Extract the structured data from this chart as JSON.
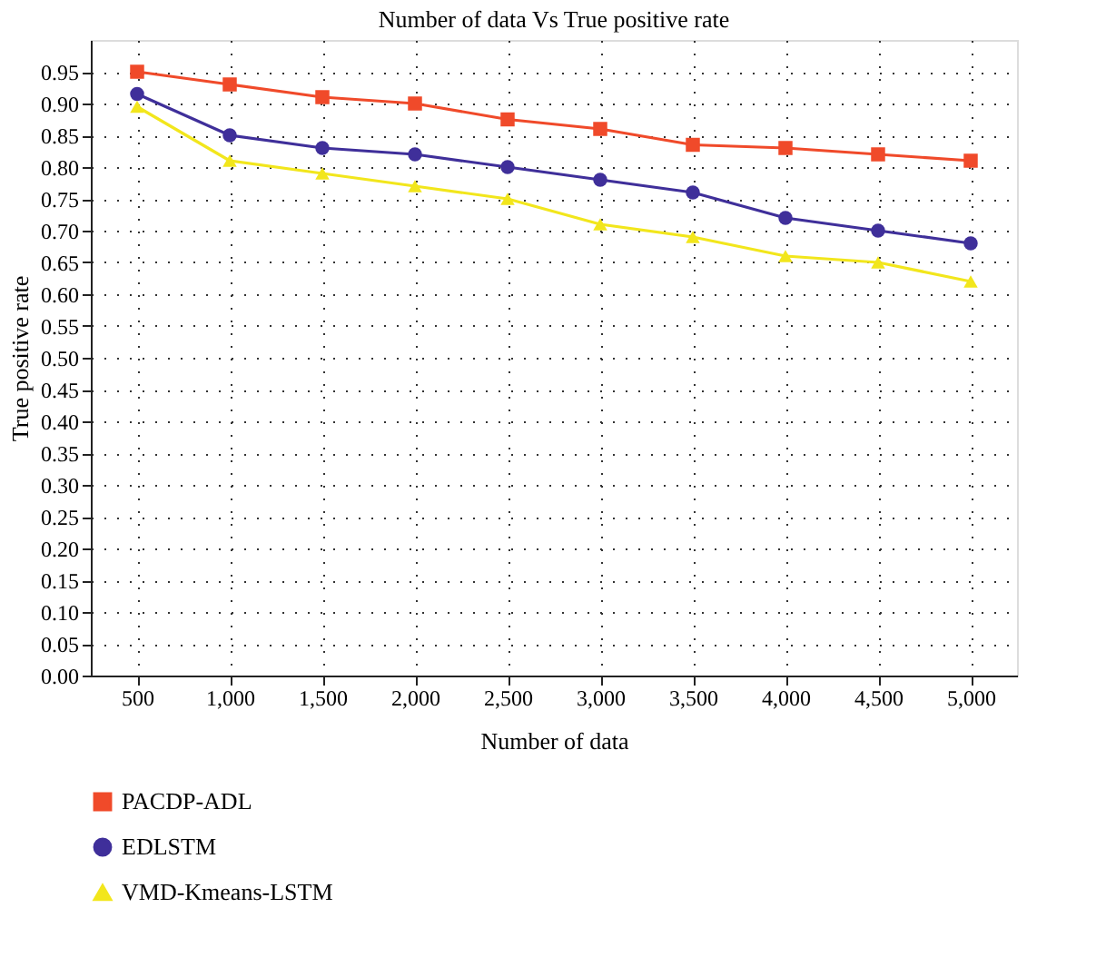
{
  "chart_data": {
    "type": "line",
    "title": "Number of data Vs True positive rate",
    "xlabel": "Number of data",
    "ylabel": "True positive rate",
    "categories": [
      "500",
      "1,000",
      "1,500",
      "2,000",
      "2,500",
      "3,000",
      "3,500",
      "4,000",
      "4,500",
      "5,000"
    ],
    "series": [
      {
        "name": "PACDP-ADL",
        "color": "#f04a2a",
        "marker": "square",
        "values": [
          0.95,
          0.93,
          0.91,
          0.9,
          0.875,
          0.86,
          0.835,
          0.83,
          0.82,
          0.81
        ]
      },
      {
        "name": "EDLSTM",
        "color": "#3f2f9a",
        "marker": "circle",
        "values": [
          0.915,
          0.85,
          0.83,
          0.82,
          0.8,
          0.78,
          0.76,
          0.72,
          0.7,
          0.68
        ]
      },
      {
        "name": "VMD-Kmeans-LSTM",
        "color": "#f2e61c",
        "marker": "triangle",
        "values": [
          0.895,
          0.81,
          0.79,
          0.77,
          0.75,
          0.71,
          0.69,
          0.66,
          0.65,
          0.62
        ]
      }
    ],
    "ylim": [
      0,
      1.0
    ],
    "yticks": [
      {
        "value": 0,
        "label": "0.00"
      },
      {
        "value": 0.05,
        "label": "0.05"
      },
      {
        "value": 0.1,
        "label": "0.10"
      },
      {
        "value": 0.15,
        "label": "0.15"
      },
      {
        "value": 0.2,
        "label": "0.20"
      },
      {
        "value": 0.25,
        "label": "0.25"
      },
      {
        "value": 0.3,
        "label": "0.30"
      },
      {
        "value": 0.35,
        "label": "0.35"
      },
      {
        "value": 0.4,
        "label": "0.40"
      },
      {
        "value": 0.45,
        "label": "0.45"
      },
      {
        "value": 0.5,
        "label": "0.50"
      },
      {
        "value": 0.55,
        "label": "0.55"
      },
      {
        "value": 0.6,
        "label": "0.60"
      },
      {
        "value": 0.65,
        "label": "0.65"
      },
      {
        "value": 0.7,
        "label": "0.70"
      },
      {
        "value": 0.75,
        "label": "0.75"
      },
      {
        "value": 0.8,
        "label": "0.80"
      },
      {
        "value": 0.85,
        "label": "0.85"
      },
      {
        "value": 0.9,
        "label": "0.90"
      },
      {
        "value": 0.95,
        "label": "0.95"
      }
    ],
    "grid": true,
    "legend": "bottom left",
    "line_style": "solid"
  }
}
